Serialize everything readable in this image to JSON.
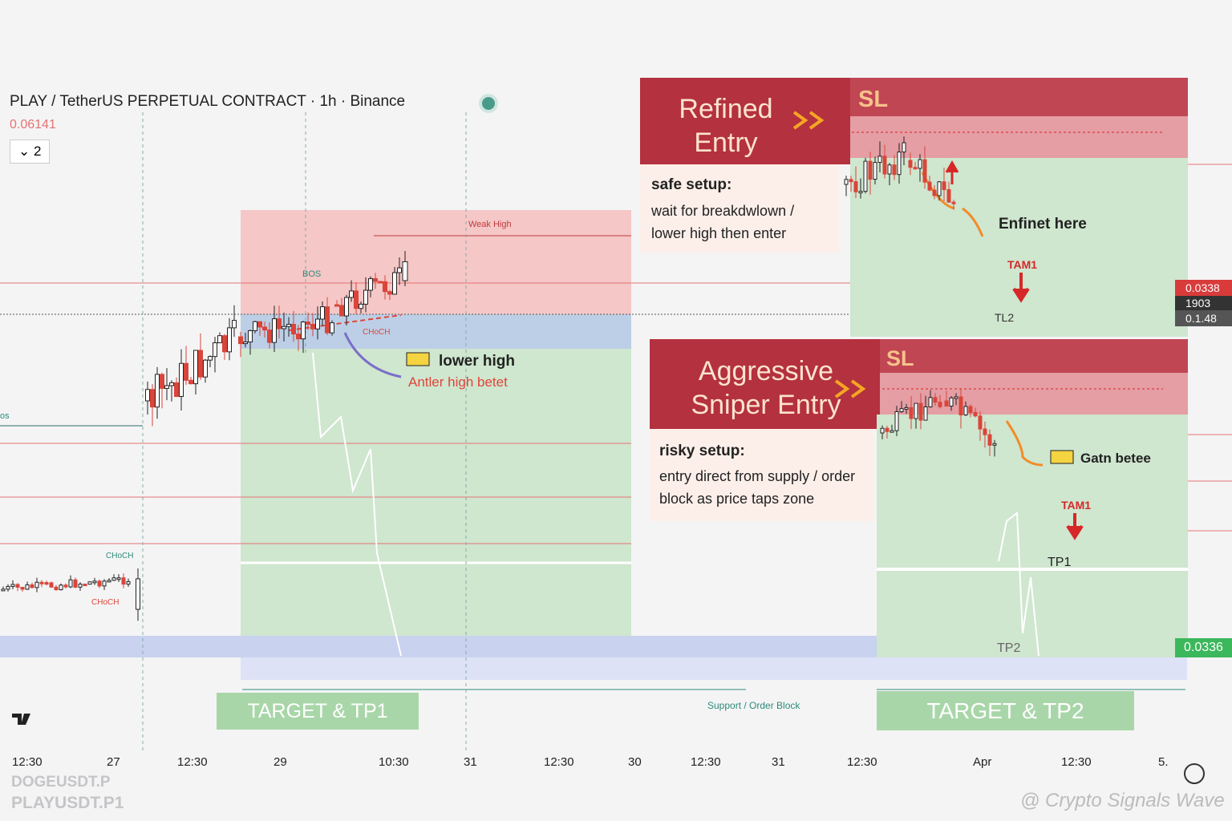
{
  "header": {
    "symbol": "PLAY / TetherUS PERPETUAL CONTRACT · 1h · Binance",
    "price": "0.06141",
    "indicator_count": "2"
  },
  "chart_labels": {
    "weak_high": "Weak High",
    "bos": "BOS",
    "bos_left": "os",
    "choch": [
      "CHoCH",
      "CHoCH",
      "CHoCH"
    ],
    "lower_high": "lower high",
    "lower_high_note": "Antler high betet",
    "support": "Support / Order Block",
    "target_tp1": "TARGET & TP1",
    "target_tp2": "TARGET & TP2"
  },
  "refined": {
    "title": "Refined Entry",
    "sl": "SL",
    "setup_title": "safe setup:",
    "setup_text": "wait for breakdwlown / lower high then enter",
    "entry_label": "Enfinet here",
    "target_caption": "TAM1",
    "level": "TL2"
  },
  "aggressive": {
    "title": "Aggressive Sniper Entry",
    "sl": "SL",
    "setup_title": "risky setup:",
    "setup_text": "entry direct from supply / order block as price taps zone",
    "entry_label": "Gatn betee",
    "target_caption": "TAM1",
    "tp1": "TP1",
    "tp2": "TP2"
  },
  "price_labels": [
    "0.0338",
    "1903",
    "0.1.48",
    "0.0336"
  ],
  "x_axis": [
    "12:30",
    "27",
    "12:30",
    "29",
    "10:30",
    "31",
    "12:30",
    "30",
    "12:30",
    "31",
    "12:30",
    "Apr",
    "12:30",
    "5."
  ],
  "symbols": [
    "DOGEUSDT.P",
    "PLAYUSDT.P1"
  ],
  "watermark": "@ Crypto Signals Wave"
}
